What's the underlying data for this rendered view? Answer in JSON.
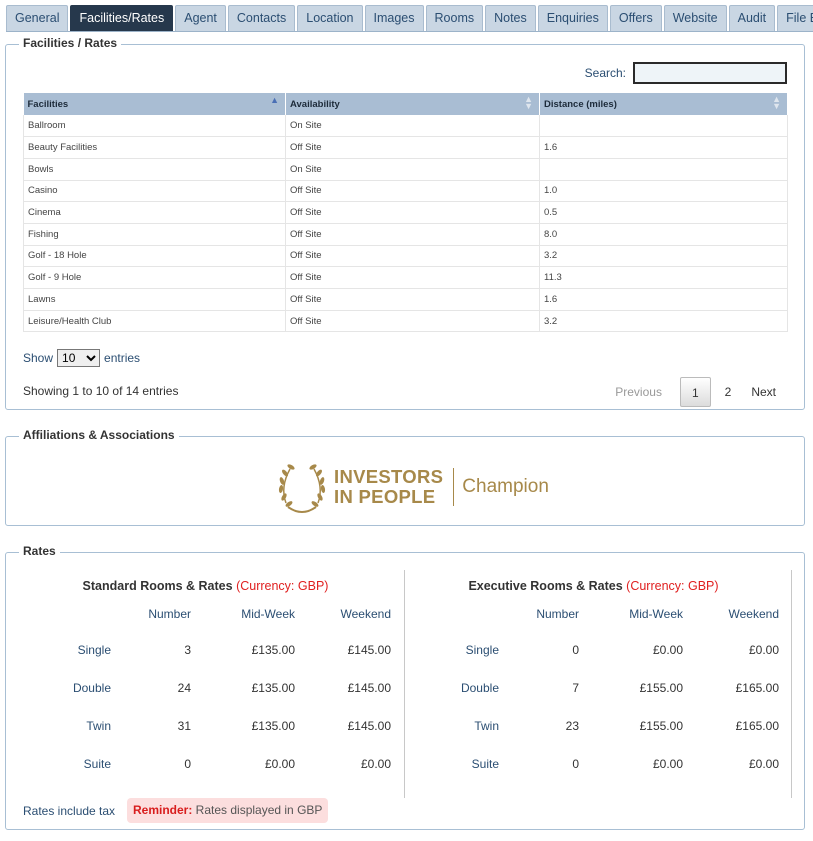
{
  "tabs": [
    "General",
    "Facilities/Rates",
    "Agent",
    "Contacts",
    "Location",
    "Images",
    "Rooms",
    "Notes",
    "Enquiries",
    "Offers",
    "Website",
    "Audit",
    "File Bank"
  ],
  "active_tab": "Facilities/Rates",
  "facilities": {
    "legend": "Facilities / Rates",
    "search_label": "Search:",
    "search_value": "",
    "columns": [
      "Facilities",
      "Availability",
      "Distance (miles)"
    ],
    "rows": [
      [
        "Ballroom",
        "On Site",
        ""
      ],
      [
        "Beauty Facilities",
        "Off Site",
        "1.6"
      ],
      [
        "Bowls",
        "On Site",
        ""
      ],
      [
        "Casino",
        "Off Site",
        "1.0"
      ],
      [
        "Cinema",
        "Off Site",
        "0.5"
      ],
      [
        "Fishing",
        "Off Site",
        "8.0"
      ],
      [
        "Golf - 18 Hole",
        "Off Site",
        "3.2"
      ],
      [
        "Golf - 9 Hole",
        "Off Site",
        "11.3"
      ],
      [
        "Lawns",
        "Off Site",
        "1.6"
      ],
      [
        "Leisure/Health Club",
        "Off Site",
        "3.2"
      ]
    ],
    "show_label": "Show",
    "show_value": "10",
    "entries_label": "entries",
    "info": "Showing 1 to 10 of 14 entries",
    "pager": {
      "previous": "Previous",
      "pages": [
        "1",
        "2"
      ],
      "current": "1",
      "next": "Next"
    }
  },
  "affiliations": {
    "legend": "Affiliations & Associations",
    "logo_line1": "INVESTORS",
    "logo_line2": "IN PEOPLE",
    "logo_tagline": "Champion",
    "logo_color": "#a7894a"
  },
  "rates": {
    "legend": "Rates",
    "headers": [
      "Number",
      "Mid-Week",
      "Weekend"
    ],
    "standard": {
      "title": "Standard Rooms & Rates",
      "currency": "(Currency: GBP)",
      "rows": [
        {
          "type": "Single",
          "number": "3",
          "mid": "£135.00",
          "weekend": "£145.00"
        },
        {
          "type": "Double",
          "number": "24",
          "mid": "£135.00",
          "weekend": "£145.00"
        },
        {
          "type": "Twin",
          "number": "31",
          "mid": "£135.00",
          "weekend": "£145.00"
        },
        {
          "type": "Suite",
          "number": "0",
          "mid": "£0.00",
          "weekend": "£0.00"
        }
      ]
    },
    "executive": {
      "title": "Executive Rooms & Rates",
      "currency": "(Currency: GBP)",
      "rows": [
        {
          "type": "Single",
          "number": "0",
          "mid": "£0.00",
          "weekend": "£0.00"
        },
        {
          "type": "Double",
          "number": "7",
          "mid": "£155.00",
          "weekend": "£165.00"
        },
        {
          "type": "Twin",
          "number": "23",
          "mid": "£155.00",
          "weekend": "£165.00"
        },
        {
          "type": "Suite",
          "number": "0",
          "mid": "£0.00",
          "weekend": "£0.00"
        }
      ]
    },
    "tax_note": "Rates include tax",
    "reminder_label": "Reminder:",
    "reminder_text": " Rates displayed in GBP"
  },
  "colors": {
    "accent": "#26384c",
    "tab_bg": "#c9d6e3",
    "header_bg": "#a9bdd3",
    "reminder_bg": "#fcdede",
    "currency_red": "#e02020"
  }
}
